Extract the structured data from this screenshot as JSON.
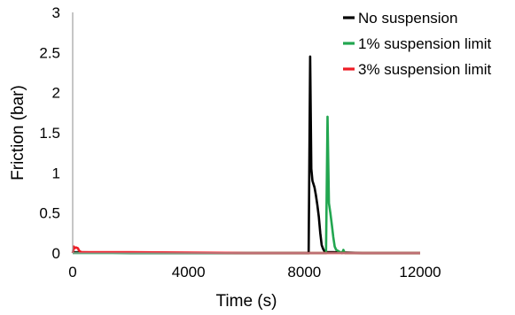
{
  "chart_data": {
    "type": "line",
    "xlabel": "Time (s)",
    "ylabel": "Friction (bar)",
    "xlim": [
      0,
      12000
    ],
    "ylim": [
      0,
      3
    ],
    "xticks": [
      "0",
      "4000",
      "8000",
      "12000"
    ],
    "yticks": [
      "0",
      "0.5",
      "1",
      "1.5",
      "2",
      "2.5",
      "3"
    ],
    "grid": false,
    "legend_position": "top-right",
    "series": [
      {
        "name": "No suspension",
        "color": "#000000",
        "x": [
          0,
          2000,
          6000,
          7900,
          8150,
          8200,
          8240,
          8280,
          8350,
          8400,
          8450,
          8500,
          8550,
          8600,
          8650,
          8700,
          8800,
          9000,
          10000,
          12000
        ],
        "y": [
          0.01,
          0.0,
          0.0,
          0.0,
          0.0,
          2.45,
          1.05,
          0.9,
          0.82,
          0.72,
          0.6,
          0.45,
          0.25,
          0.1,
          0.05,
          0.02,
          0.01,
          0.01,
          0.0,
          0.0
        ]
      },
      {
        "name": "1% suspension limit",
        "color": "#22a650",
        "x": [
          0,
          2000,
          6000,
          8600,
          8700,
          8750,
          8800,
          8850,
          8900,
          8950,
          9000,
          9050,
          9100,
          9200,
          9300,
          9350,
          9400,
          9450,
          9600,
          10000,
          12000
        ],
        "y": [
          0.0,
          0.0,
          0.0,
          0.0,
          0.0,
          0.0,
          1.7,
          0.62,
          0.5,
          0.35,
          0.2,
          0.08,
          0.04,
          0.02,
          0.0,
          0.04,
          0.0,
          0.0,
          0.0,
          0.0,
          0.0
        ]
      },
      {
        "name": "3% suspension limit",
        "color": "#ee1c25",
        "x": [
          0,
          20,
          40,
          60,
          120,
          180,
          220,
          300,
          600,
          2000,
          6000,
          12000
        ],
        "y": [
          0.0,
          0.04,
          0.08,
          0.06,
          0.07,
          0.06,
          0.03,
          0.01,
          0.01,
          0.01,
          0.0,
          0.0
        ]
      }
    ]
  }
}
